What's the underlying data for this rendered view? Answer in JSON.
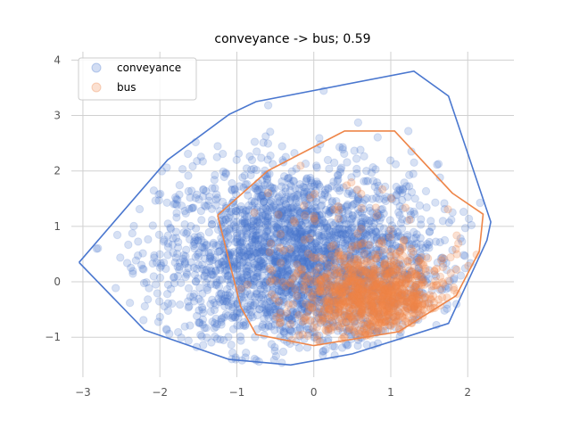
{
  "chart_data": {
    "type": "scatter",
    "title": "conveyance -> bus; 0.59",
    "xlabel": "",
    "ylabel": "",
    "xlim": [
      -3.15,
      2.6
    ],
    "ylim": [
      -1.72,
      4.15
    ],
    "xticks": [
      -3,
      -2,
      -1,
      0,
      1,
      2
    ],
    "yticks": [
      -1,
      0,
      1,
      2,
      3,
      4
    ],
    "grid": true,
    "legend_position": "top-left",
    "series": [
      {
        "name": "conveyance",
        "color": "#4a77cf",
        "point_count_approx": 12000,
        "center": [
          -0.2,
          0.4
        ],
        "hull": [
          [
            -3.05,
            0.35
          ],
          [
            -1.9,
            2.2
          ],
          [
            -1.1,
            3.02
          ],
          [
            -0.75,
            3.25
          ],
          [
            1.3,
            3.8
          ],
          [
            1.75,
            3.35
          ],
          [
            2.3,
            1.08
          ],
          [
            2.25,
            0.75
          ],
          [
            1.75,
            -0.75
          ],
          [
            0.5,
            -1.3
          ],
          [
            -0.3,
            -1.5
          ],
          [
            -1.1,
            -1.4
          ],
          [
            -2.2,
            -0.87
          ],
          [
            -3.05,
            0.35
          ]
        ]
      },
      {
        "name": "bus",
        "color": "#ee8548",
        "point_count_approx": 1600,
        "center": [
          0.8,
          -0.3
        ],
        "hull": [
          [
            -1.25,
            1.2
          ],
          [
            -0.6,
            2.0
          ],
          [
            0.4,
            2.72
          ],
          [
            1.05,
            2.72
          ],
          [
            1.8,
            1.6
          ],
          [
            2.2,
            1.22
          ],
          [
            2.15,
            0.55
          ],
          [
            1.85,
            -0.25
          ],
          [
            1.1,
            -0.9
          ],
          [
            0.0,
            -1.15
          ],
          [
            -0.75,
            -0.95
          ],
          [
            -0.95,
            -0.45
          ],
          [
            -1.25,
            1.2
          ]
        ]
      }
    ]
  }
}
